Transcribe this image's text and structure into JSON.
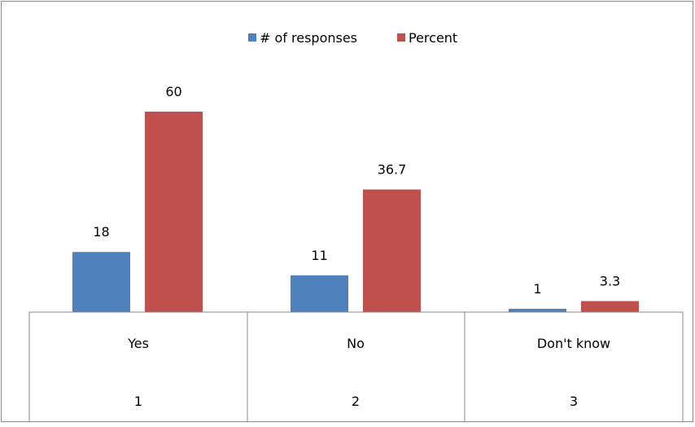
{
  "chart_data": {
    "type": "bar",
    "categories": [
      "Yes",
      "No",
      "Don't know"
    ],
    "category_numbers": [
      "1",
      "2",
      "3"
    ],
    "series": [
      {
        "name": "# of responses",
        "color": "#4F81BD",
        "values": [
          18,
          11,
          1
        ],
        "labels": [
          "18",
          "11",
          "1"
        ]
      },
      {
        "name": "Percent",
        "color": "#C0504D",
        "values": [
          60,
          36.7,
          3.3
        ],
        "labels": [
          "60",
          "36.7",
          "3.3"
        ]
      }
    ],
    "ylim": [
      0,
      70
    ],
    "grid": false,
    "legend_position": "top"
  }
}
